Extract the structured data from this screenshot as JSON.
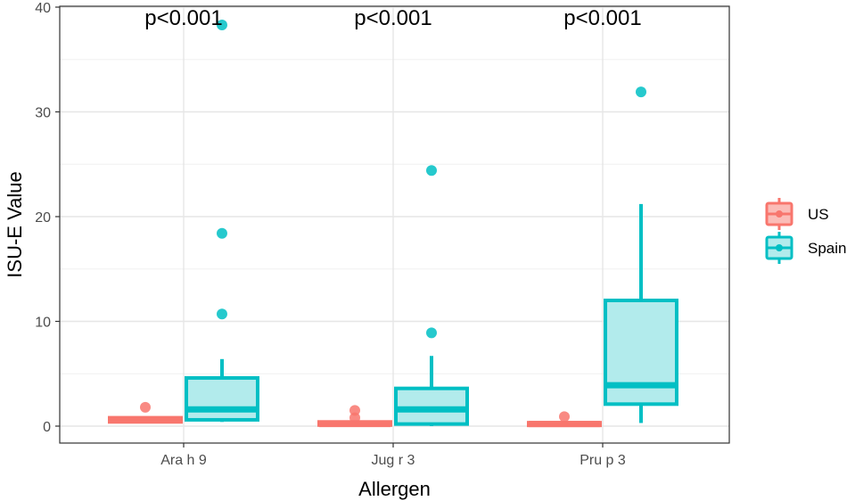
{
  "chart_data": {
    "type": "boxplot",
    "xlabel": "Allergen",
    "ylabel": "ISU-E Value",
    "ylim": [
      0,
      40
    ],
    "yticks": [
      0,
      10,
      20,
      30,
      40
    ],
    "categories": [
      "Ara h 9",
      "Jug r 3",
      "Pru p 3"
    ],
    "annotations": [
      "p<0.001",
      "p<0.001",
      "p<0.001"
    ],
    "series": [
      {
        "name": "US",
        "color": "#f8766d",
        "fill": "#fbbcb7",
        "boxes": [
          {
            "q1": 0.4,
            "median": 0.6,
            "q3": 0.8,
            "whisker_low": 0.4,
            "whisker_high": 0.8,
            "outliers": [
              1.8
            ]
          },
          {
            "q1": 0.1,
            "median": 0.2,
            "q3": 0.4,
            "whisker_low": 0.0,
            "whisker_high": 0.5,
            "outliers": [
              0.8,
              1.5
            ]
          },
          {
            "q1": 0.1,
            "median": 0.2,
            "q3": 0.3,
            "whisker_low": 0.0,
            "whisker_high": 0.4,
            "outliers": [
              0.9
            ]
          }
        ]
      },
      {
        "name": "Spain",
        "color": "#00bfc4",
        "fill": "#b2ebec",
        "boxes": [
          {
            "q1": 0.6,
            "median": 1.6,
            "q3": 4.6,
            "whisker_low": 0.4,
            "whisker_high": 6.4,
            "outliers": [
              10.7,
              18.4,
              38.3
            ]
          },
          {
            "q1": 0.2,
            "median": 1.6,
            "q3": 3.6,
            "whisker_low": 0.0,
            "whisker_high": 6.7,
            "outliers": [
              8.9,
              24.4
            ]
          },
          {
            "q1": 2.1,
            "median": 3.9,
            "q3": 12.0,
            "whisker_low": 0.3,
            "whisker_high": 21.2,
            "outliers": [
              31.9
            ]
          }
        ]
      }
    ],
    "legend_position": "right"
  }
}
